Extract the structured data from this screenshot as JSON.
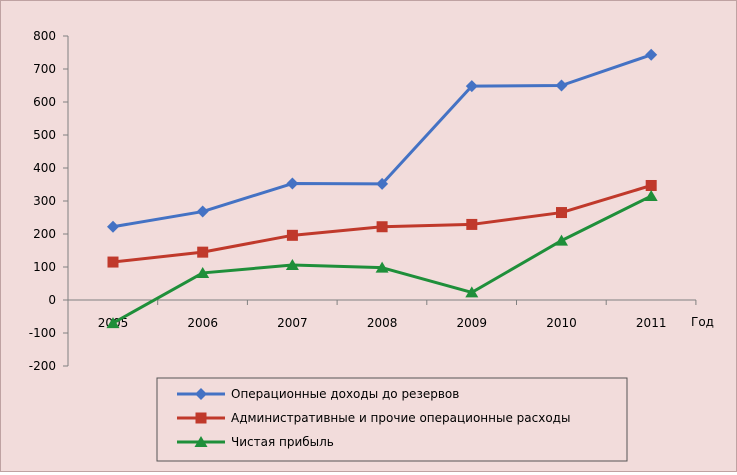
{
  "background": "#f2dcdb",
  "chart_data": {
    "type": "line",
    "x": [
      "2005",
      "2006",
      "2007",
      "2008",
      "2009",
      "2010",
      "2011"
    ],
    "x_unit_label": "Год",
    "ylim": [
      -200,
      800
    ],
    "yticks": [
      -200,
      -100,
      0,
      100,
      200,
      300,
      400,
      500,
      600,
      700,
      800
    ],
    "grid": false,
    "legend_position": "bottom",
    "series": [
      {
        "name": "Операционные доходы до резервов",
        "color": "#4472c4",
        "marker": "diamond",
        "values": [
          222,
          268,
          353,
          352,
          648,
          650,
          743
        ]
      },
      {
        "name": "Административные и прочие операционные расходы",
        "color": "#c0392b",
        "marker": "square",
        "values": [
          115,
          145,
          196,
          222,
          229,
          265,
          347
        ]
      },
      {
        "name": "Чистая прибыль",
        "color": "#1f8f3a",
        "marker": "triangle",
        "values": [
          -70,
          82,
          106,
          98,
          23,
          180,
          315
        ]
      }
    ]
  }
}
